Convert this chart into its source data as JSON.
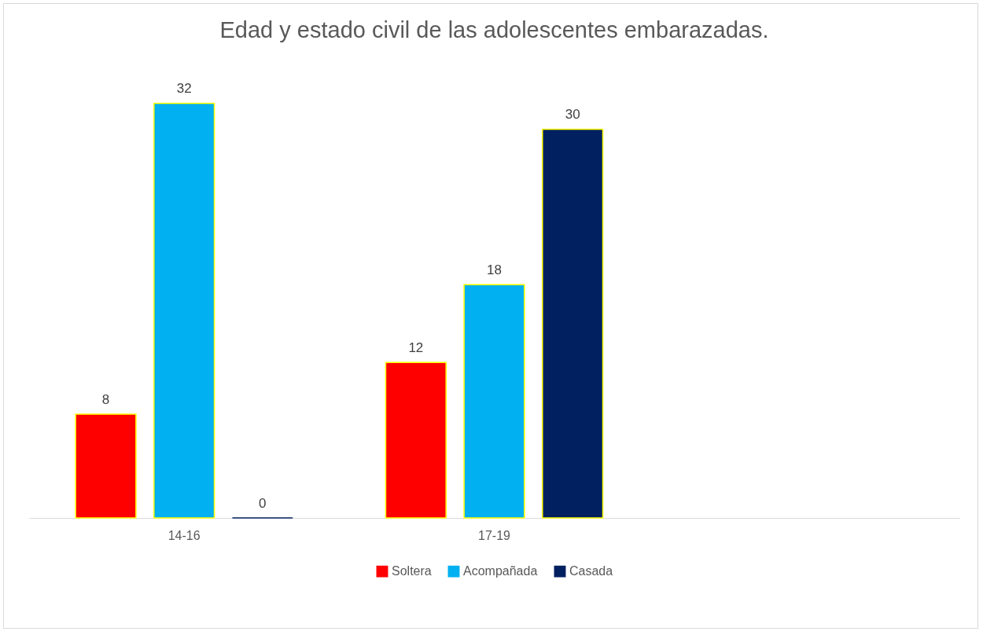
{
  "chart_data": {
    "type": "bar",
    "title": "Edad y estado civil de las adolescentes embarazadas.",
    "categories": [
      "14-16",
      "17-19",
      null
    ],
    "series": [
      {
        "name": "Soltera",
        "color": "#ff0000",
        "values": [
          8,
          12,
          null
        ]
      },
      {
        "name": "Acompañada",
        "color": "#00b0f0",
        "values": [
          32,
          18,
          null
        ]
      },
      {
        "name": "Casada",
        "color": "#002060",
        "values": [
          0,
          30,
          null
        ]
      }
    ],
    "data_labels": true,
    "grid": false,
    "legend": "bottom"
  }
}
